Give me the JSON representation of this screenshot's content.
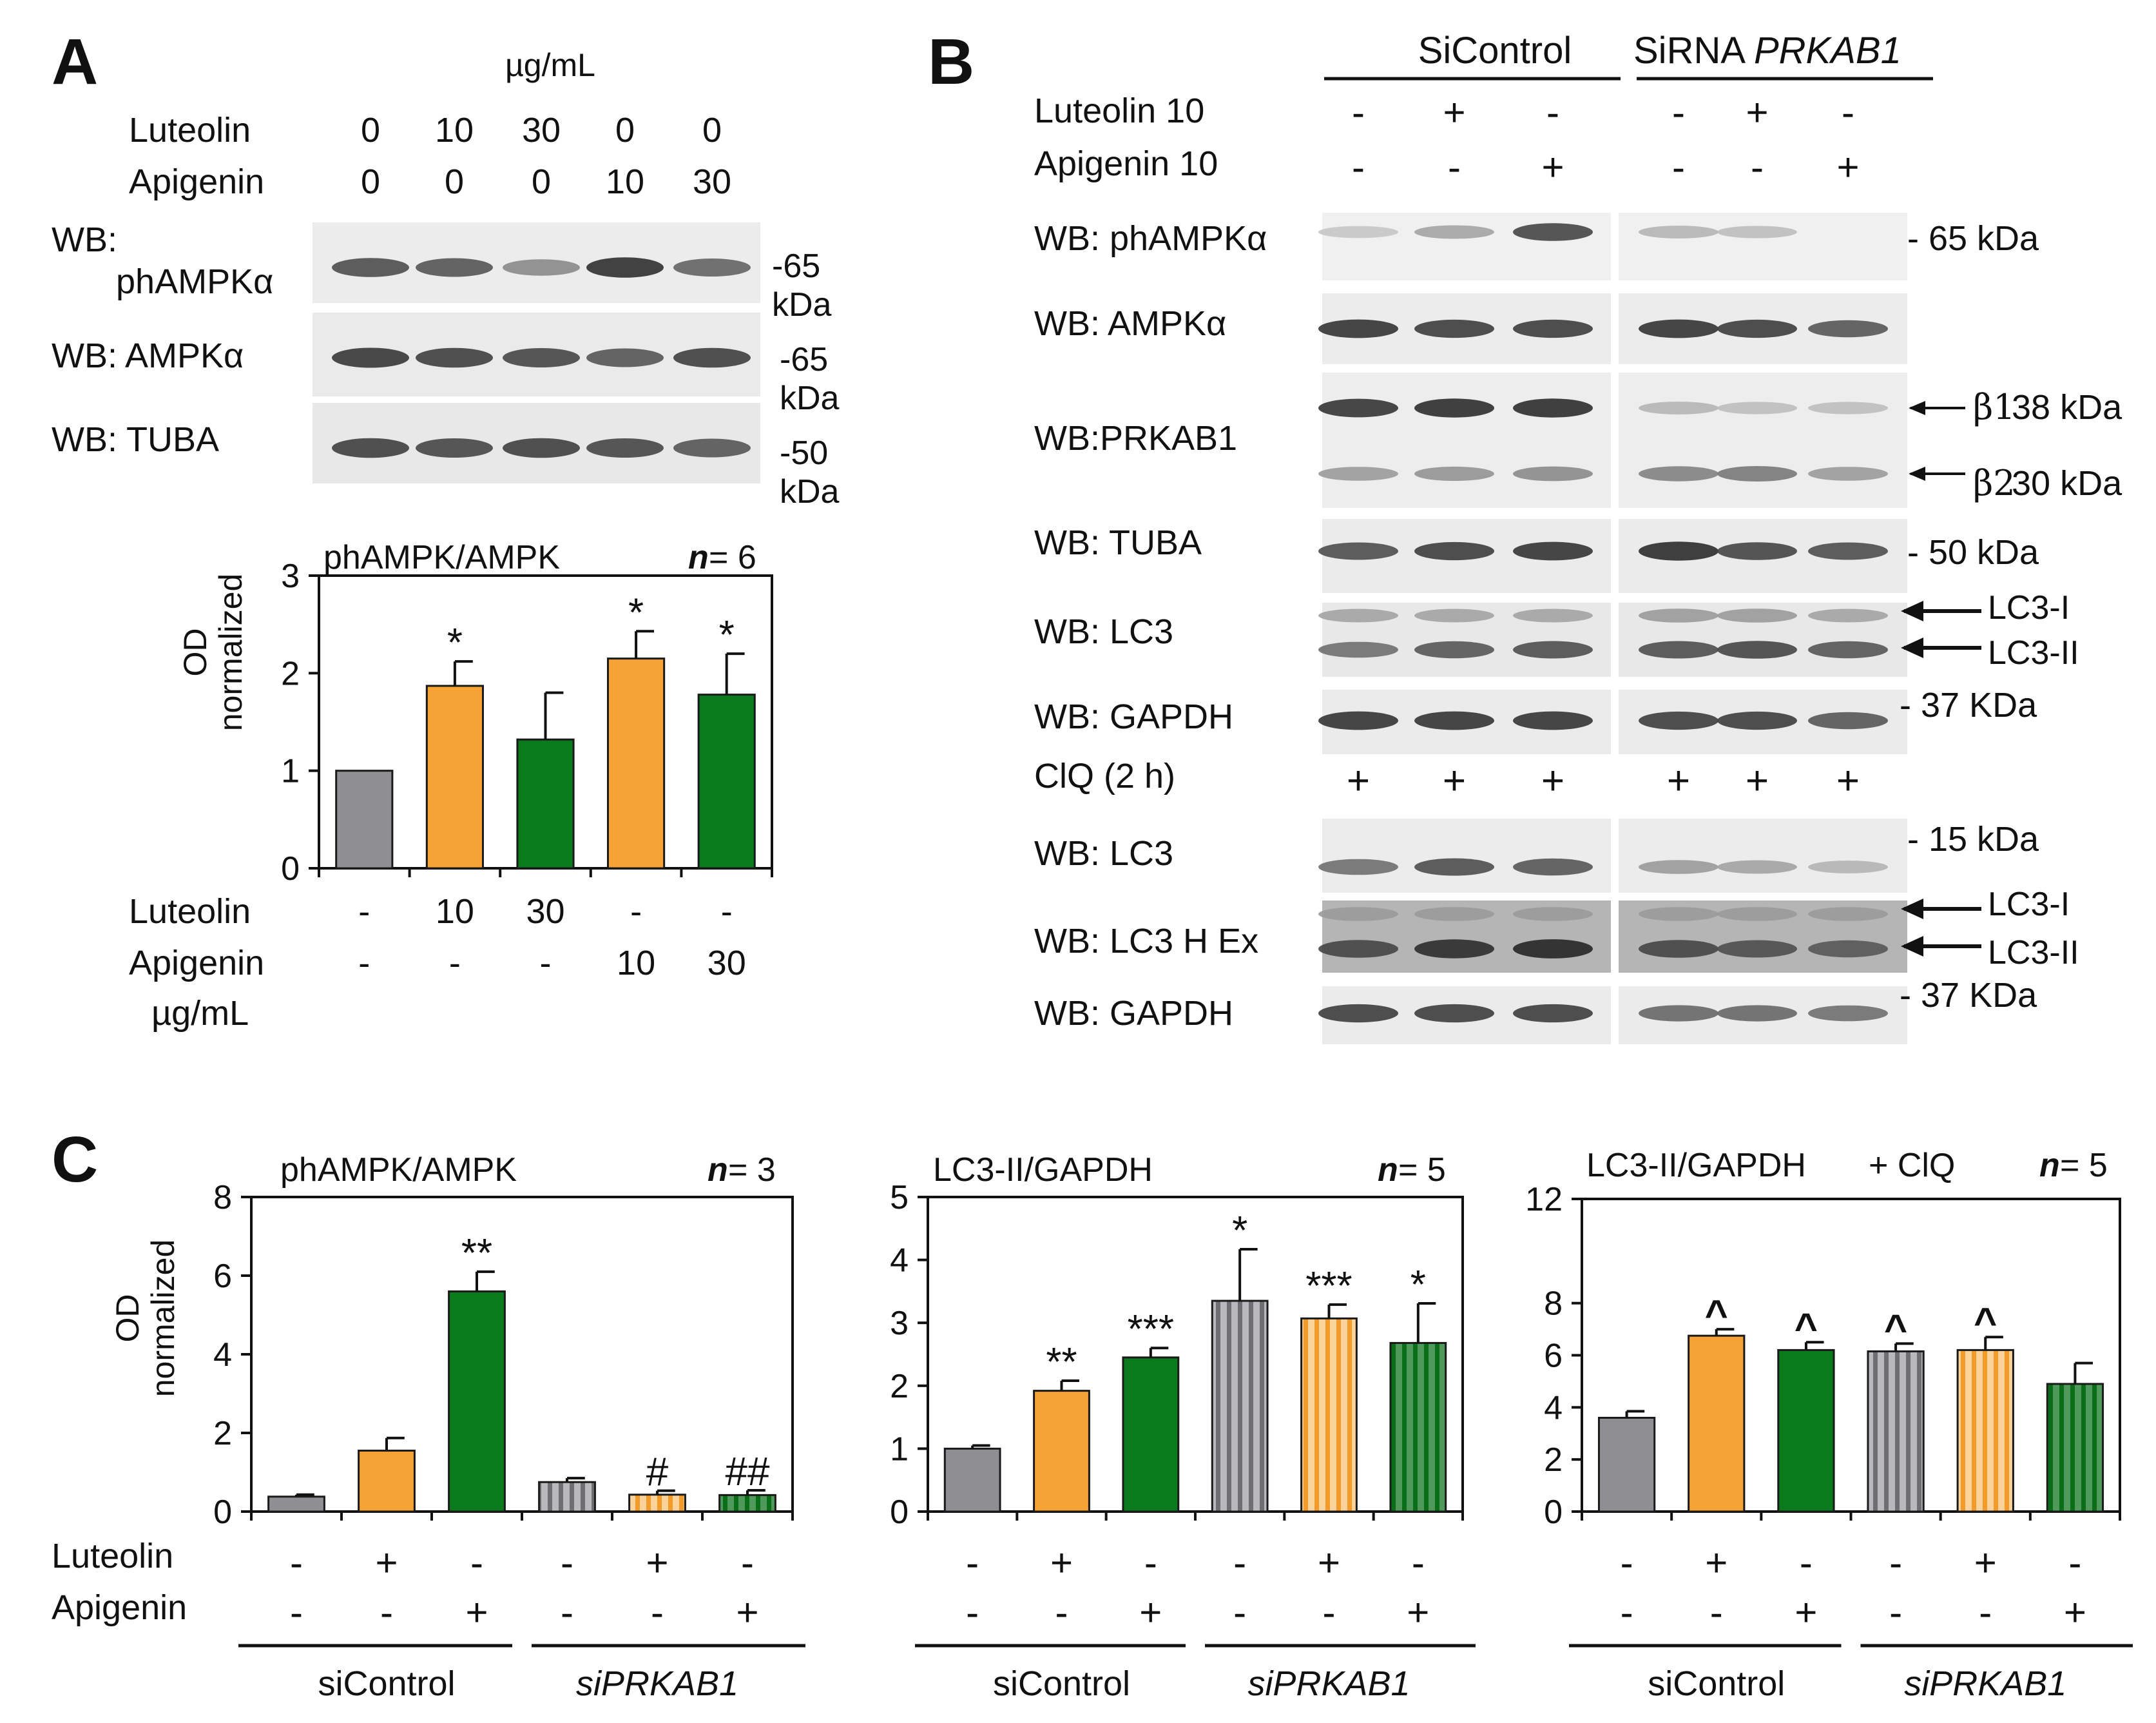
{
  "colors": {
    "gray": "#8f8f93",
    "orange": "#f7a234",
    "green": "#0a7a1c",
    "axis": "#111111"
  },
  "panelA": {
    "letter": "A",
    "conc_unit": "µg/mL",
    "luteolin_label": "Luteolin",
    "apigenin_label": "Apigenin",
    "luteolin_doses": [
      "0",
      "10",
      "30",
      "0",
      "0"
    ],
    "apigenin_doses": [
      "0",
      "0",
      "0",
      "10",
      "30"
    ],
    "blots": [
      {
        "label_line1": "WB:",
        "label_line2": "phAMPKα",
        "size": "-65",
        "unit": "kDa",
        "bands": [
          0.75,
          0.7,
          0.35,
          0.95,
          0.6
        ]
      },
      {
        "label": "WB: AMPKα",
        "size": "-65",
        "unit": "kDa",
        "bands": [
          0.9,
          0.85,
          0.8,
          0.7,
          0.85
        ]
      },
      {
        "label": "WB: TUBA",
        "size": "-50",
        "unit": "kDa",
        "bands": [
          0.85,
          0.8,
          0.85,
          0.8,
          0.7
        ]
      }
    ],
    "x_luteolin": [
      "-",
      "10",
      "30",
      "-",
      "-"
    ],
    "x_apigenin": [
      "-",
      "-",
      "-",
      "10",
      "30"
    ],
    "x_unit": "µg/mL"
  },
  "panelB": {
    "letter": "B",
    "group1": "SiControl",
    "group2_prefix": "SiRNA ",
    "group2_gene": "PRKAB1",
    "luteolin_label": "Luteolin 10",
    "apigenin_label": "Apigenin 10",
    "luteolin_signs": [
      "-",
      "+",
      "-",
      "-",
      "+",
      "-"
    ],
    "apigenin_signs": [
      "-",
      "-",
      "+",
      "-",
      "-",
      "+"
    ],
    "clq_label": "ClQ (2 h)",
    "clq_signs": [
      "+",
      "+",
      "+",
      "+",
      "+",
      "+"
    ],
    "blots": [
      {
        "label": "WB: phAMPKα",
        "marker": "- 65 kDa"
      },
      {
        "label": "WB: AMPKα"
      },
      {
        "label": "WB:PRKAB1",
        "arrow1_sym": "β1",
        "arrow1_size": "38 kDa",
        "arrow2_sym": "β2",
        "arrow2_size": "30 kDa"
      },
      {
        "label": "WB: TUBA",
        "marker": "- 50 kDa"
      },
      {
        "label": "WB: LC3",
        "arrow1": "LC3-I",
        "arrow2": "LC3-II"
      },
      {
        "label": "WB: GAPDH",
        "marker": "- 37 KDa"
      },
      {
        "label": "WB: LC3",
        "marker": "- 15 kDa"
      },
      {
        "label": "WB: LC3 H Ex",
        "arrow1": "LC3-I",
        "arrow2": "LC3-II"
      },
      {
        "label": "WB: GAPDH",
        "marker": "- 37 KDa"
      }
    ]
  },
  "panelC": {
    "letter": "C",
    "luteolin_label": "Luteolin",
    "apigenin_label": "Apigenin",
    "luteolin_signs": [
      "-",
      "+",
      "-",
      "-",
      "+",
      "-"
    ],
    "apigenin_signs": [
      "-",
      "-",
      "+",
      "-",
      "-",
      "+"
    ],
    "group1": "siControl",
    "group2": "siPRKAB1"
  },
  "chart_data": [
    {
      "type": "bar",
      "panel": "A",
      "title": "phAMPK/AMPK",
      "n_label": "n",
      "n_value": "= 6",
      "ylabel_line1": "OD",
      "ylabel_line2": "normalized",
      "ylim": [
        0,
        3
      ],
      "yticks": [
        "0",
        "1",
        "2",
        "3"
      ],
      "categories": [
        "Control",
        "Luteolin 10",
        "Luteolin 30",
        "Apigenin 10",
        "Apigenin 30"
      ],
      "values": [
        1.0,
        1.87,
        1.32,
        2.15,
        1.78
      ],
      "errors": [
        0,
        0.25,
        0.48,
        0.28,
        0.42
      ],
      "significance": [
        "",
        "*",
        "",
        "*",
        "*"
      ],
      "colors": [
        "gray",
        "orange",
        "green",
        "orange",
        "green"
      ],
      "striped": [
        false,
        false,
        false,
        false,
        false
      ]
    },
    {
      "type": "bar",
      "panel": "C1",
      "title": "phAMPK/AMPK",
      "n_label": "n",
      "n_value": "= 3",
      "ylabel_line1": "OD",
      "ylabel_line2": "normalized",
      "ylim": [
        0,
        8
      ],
      "yticks": [
        "0",
        "2",
        "4",
        "6",
        "8"
      ],
      "categories": [
        "siControl",
        "siControl + Luteolin",
        "siControl + Apigenin",
        "siPRKAB1",
        "siPRKAB1 + Luteolin",
        "siPRKAB1 + Apigenin"
      ],
      "values": [
        0.38,
        1.55,
        5.6,
        0.75,
        0.43,
        0.42
      ],
      "errors": [
        0.05,
        0.32,
        0.5,
        0.1,
        0.1,
        0.12
      ],
      "significance": [
        "",
        "",
        "**",
        "",
        "#",
        "##"
      ],
      "colors": [
        "gray",
        "orange",
        "green",
        "gray",
        "orange",
        "green"
      ],
      "striped": [
        false,
        false,
        false,
        true,
        true,
        true
      ]
    },
    {
      "type": "bar",
      "panel": "C2",
      "title": "LC3-II/GAPDH",
      "n_label": "n",
      "n_value": "= 5",
      "ylim": [
        0,
        5
      ],
      "yticks": [
        "0",
        "1",
        "2",
        "3",
        "4",
        "5"
      ],
      "categories": [
        "siControl",
        "siControl + Luteolin",
        "siControl + Apigenin",
        "siPRKAB1",
        "siPRKAB1 + Luteolin",
        "siPRKAB1 + Apigenin"
      ],
      "values": [
        1.0,
        1.92,
        2.45,
        3.35,
        3.07,
        2.68
      ],
      "errors": [
        0.05,
        0.16,
        0.15,
        0.82,
        0.22,
        0.63
      ],
      "significance": [
        "",
        "**",
        "***",
        "*",
        "***",
        "*"
      ],
      "colors": [
        "gray",
        "orange",
        "green",
        "gray",
        "orange",
        "green"
      ],
      "striped": [
        false,
        false,
        false,
        true,
        true,
        true
      ]
    },
    {
      "type": "bar",
      "panel": "C3",
      "title": "LC3-II/GAPDH",
      "title_suffix": "+ ClQ",
      "n_label": "n",
      "n_value": "= 5",
      "ylim": [
        0,
        12
      ],
      "yticks": [
        "0",
        "2",
        "4",
        "6",
        "8",
        "12"
      ],
      "categories": [
        "siControl",
        "siControl + Luteolin",
        "siControl + Apigenin",
        "siPRKAB1",
        "siPRKAB1 + Luteolin",
        "siPRKAB1 + Apigenin"
      ],
      "values": [
        3.6,
        6.75,
        6.2,
        6.15,
        6.2,
        4.9
      ],
      "errors": [
        0.25,
        0.25,
        0.3,
        0.3,
        0.5,
        0.8
      ],
      "significance": [
        "",
        "^",
        "^",
        "^",
        "^",
        ""
      ],
      "colors": [
        "gray",
        "orange",
        "green",
        "gray",
        "orange",
        "green"
      ],
      "striped": [
        false,
        false,
        false,
        true,
        true,
        true
      ]
    }
  ]
}
